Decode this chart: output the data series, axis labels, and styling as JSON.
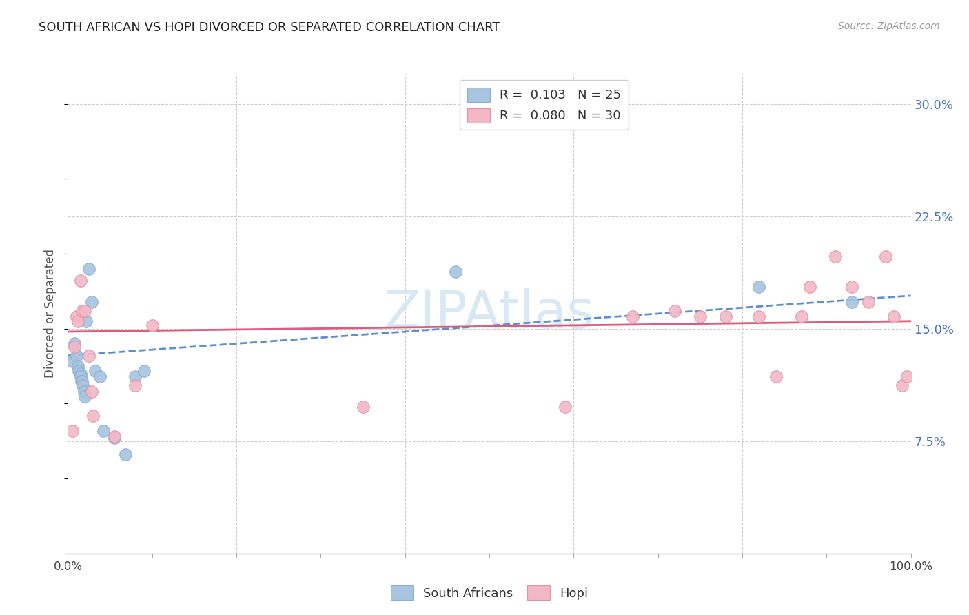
{
  "title": "SOUTH AFRICAN VS HOPI DIVORCED OR SEPARATED CORRELATION CHART",
  "source": "Source: ZipAtlas.com",
  "ylabel": "Divorced or Separated",
  "xlim": [
    0,
    1.0
  ],
  "ylim": [
    0.0,
    0.32
  ],
  "yticks": [
    0.075,
    0.15,
    0.225,
    0.3
  ],
  "yticklabels": [
    "7.5%",
    "15.0%",
    "22.5%",
    "30.0%"
  ],
  "blue_scatter_color": "#a8c4e0",
  "pink_scatter_color": "#f2b8c6",
  "blue_line_color": "#5b8fd4",
  "pink_line_color": "#e05a7a",
  "watermark_color": "#d8e8f4",
  "sa_x": [
    0.005,
    0.008,
    0.01,
    0.012,
    0.013,
    0.015,
    0.015,
    0.016,
    0.017,
    0.018,
    0.019,
    0.02,
    0.022,
    0.025,
    0.028,
    0.032,
    0.038,
    0.042,
    0.055,
    0.068,
    0.08,
    0.09,
    0.46,
    0.82,
    0.93
  ],
  "sa_y": [
    0.128,
    0.14,
    0.132,
    0.125,
    0.122,
    0.12,
    0.118,
    0.115,
    0.115,
    0.112,
    0.108,
    0.105,
    0.155,
    0.19,
    0.168,
    0.122,
    0.118,
    0.082,
    0.077,
    0.066,
    0.118,
    0.122,
    0.188,
    0.178,
    0.168
  ],
  "hopi_x": [
    0.005,
    0.008,
    0.01,
    0.012,
    0.015,
    0.017,
    0.02,
    0.025,
    0.028,
    0.03,
    0.055,
    0.08,
    0.1,
    0.35,
    0.59,
    0.67,
    0.72,
    0.75,
    0.78,
    0.82,
    0.84,
    0.87,
    0.88,
    0.91,
    0.93,
    0.95,
    0.97,
    0.98,
    0.99,
    0.995
  ],
  "hopi_y": [
    0.082,
    0.138,
    0.158,
    0.155,
    0.182,
    0.162,
    0.162,
    0.132,
    0.108,
    0.092,
    0.078,
    0.112,
    0.152,
    0.098,
    0.098,
    0.158,
    0.162,
    0.158,
    0.158,
    0.158,
    0.118,
    0.158,
    0.178,
    0.198,
    0.178,
    0.168,
    0.198,
    0.158,
    0.112,
    0.118
  ],
  "sa_trend_x0": 0.0,
  "sa_trend_x1": 1.0,
  "sa_trend_y0": 0.132,
  "sa_trend_y1": 0.172,
  "hopi_trend_x0": 0.0,
  "hopi_trend_x1": 1.0,
  "hopi_trend_y0": 0.148,
  "hopi_trend_y1": 0.155,
  "legend_blue_text": "R =  0.103   N = 25",
  "legend_pink_text": "R =  0.080   N = 30",
  "legend_bottom_blue": "South Africans",
  "legend_bottom_pink": "Hopi"
}
